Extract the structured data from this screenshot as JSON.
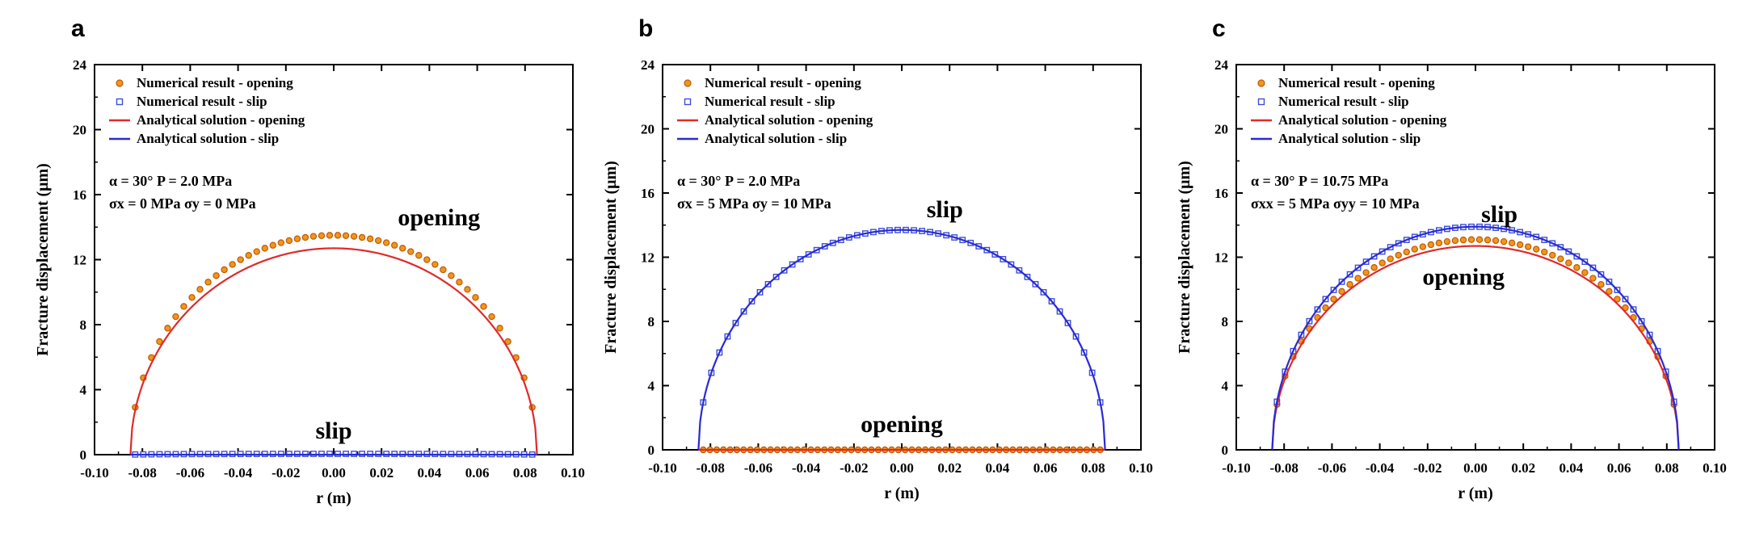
{
  "chart_data": [
    {
      "panel": "a",
      "type": "line+scatter",
      "xlabel": "r (m)",
      "ylabel": "Fracture displacement (μm)",
      "xlim": [
        -0.1,
        0.1
      ],
      "ylim": [
        0,
        24
      ],
      "xticks": [
        "-0.10",
        "-0.08",
        "-0.06",
        "-0.04",
        "-0.02",
        "0.00",
        "0.02",
        "0.04",
        "0.06",
        "0.08",
        "0.10"
      ],
      "yticks": [
        "0",
        "4",
        "8",
        "12",
        "16",
        "20",
        "24"
      ],
      "legend": [
        "Numerical result - opening",
        "Numerical result - slip",
        "Analytical solution - opening",
        "Analytical solution - slip"
      ],
      "params": [
        "α = 30°   P = 2.0 MPa",
        "σx = 0 MPa   σy = 0 MPa"
      ],
      "annotations": [
        {
          "text": "opening",
          "x": 0.044,
          "y": 14.1
        },
        {
          "text": "slip",
          "x": 0.0,
          "y": 1.0
        }
      ],
      "half_length": 0.085,
      "series": [
        {
          "name": "Numerical result - opening",
          "kind": "scatter",
          "marker": "circle",
          "color": "#f0961e",
          "peak": 13.5,
          "n": 50
        },
        {
          "name": "Numerical result - slip",
          "kind": "scatter",
          "marker": "square",
          "color": "#3b4fd6",
          "peak": 0.05,
          "n": 50
        },
        {
          "name": "Analytical solution - opening",
          "kind": "line",
          "color": "#e02a2a",
          "peak": 12.7
        },
        {
          "name": "Analytical solution - slip",
          "kind": "line",
          "color": "#2a2ad6",
          "peak": 0
        }
      ]
    },
    {
      "panel": "b",
      "type": "line+scatter",
      "xlabel": "r (m)",
      "ylabel": "Fracture displacement (μm)",
      "xlim": [
        -0.1,
        0.1
      ],
      "ylim": [
        0,
        24
      ],
      "xticks": [
        "-0.10",
        "-0.08",
        "-0.06",
        "-0.04",
        "-0.02",
        "0.00",
        "0.02",
        "0.04",
        "0.06",
        "0.08",
        "0.10"
      ],
      "yticks": [
        "0",
        "4",
        "8",
        "12",
        "16",
        "20",
        "24"
      ],
      "legend": [
        "Numerical result - opening",
        "Numerical result - slip",
        "Analytical solution - opening",
        "Analytical solution - slip"
      ],
      "params": [
        "α = 30°   P = 2.0 MPa",
        "σx = 5 MPa   σy = 10 MPa"
      ],
      "annotations": [
        {
          "text": "slip",
          "x": 0.018,
          "y": 14.5
        },
        {
          "text": "opening",
          "x": 0.0,
          "y": 1.1
        }
      ],
      "half_length": 0.085,
      "series": [
        {
          "name": "Numerical result - opening",
          "kind": "scatter",
          "marker": "circle",
          "color": "#f0961e",
          "peak": 0,
          "n": 60
        },
        {
          "name": "Numerical result - slip",
          "kind": "scatter",
          "marker": "square",
          "color": "#3b4fd6",
          "peak": 13.7,
          "n": 50
        },
        {
          "name": "Analytical solution - opening",
          "kind": "line",
          "color": "#e02a2a",
          "peak": 0
        },
        {
          "name": "Analytical solution - slip",
          "kind": "line",
          "color": "#2a2ad6",
          "peak": 13.7
        }
      ]
    },
    {
      "panel": "c",
      "type": "line+scatter",
      "xlabel": "r (m)",
      "ylabel": "Fracture displacement (μm)",
      "xlim": [
        -0.1,
        0.1
      ],
      "ylim": [
        0,
        24
      ],
      "xticks": [
        "-0.10",
        "-0.08",
        "-0.06",
        "-0.04",
        "-0.02",
        "0.00",
        "0.02",
        "0.04",
        "0.06",
        "0.08",
        "0.10"
      ],
      "yticks": [
        "0",
        "4",
        "8",
        "12",
        "16",
        "20",
        "24"
      ],
      "legend": [
        "Numerical result - opening",
        "Numerical result - slip",
        "Analytical solution - opening",
        "Analytical solution - slip"
      ],
      "params": [
        "α = 30°   P = 10.75 MPa",
        "σxx = 5 MPa   σyy = 10 MPa"
      ],
      "annotations": [
        {
          "text": "slip",
          "x": 0.01,
          "y": 14.2
        },
        {
          "text": "opening",
          "x": -0.005,
          "y": 10.3
        }
      ],
      "half_length": 0.085,
      "series": [
        {
          "name": "Numerical result - opening",
          "kind": "scatter",
          "marker": "circle",
          "color": "#f0961e",
          "peak": 13.1,
          "n": 50
        },
        {
          "name": "Numerical result - slip",
          "kind": "scatter",
          "marker": "square",
          "color": "#3b4fd6",
          "peak": 13.9,
          "n": 50
        },
        {
          "name": "Analytical solution - opening",
          "kind": "line",
          "color": "#e02a2a",
          "peak": 12.7
        },
        {
          "name": "Analytical solution - slip",
          "kind": "line",
          "color": "#2a2ad6",
          "peak": 13.9
        }
      ]
    }
  ]
}
